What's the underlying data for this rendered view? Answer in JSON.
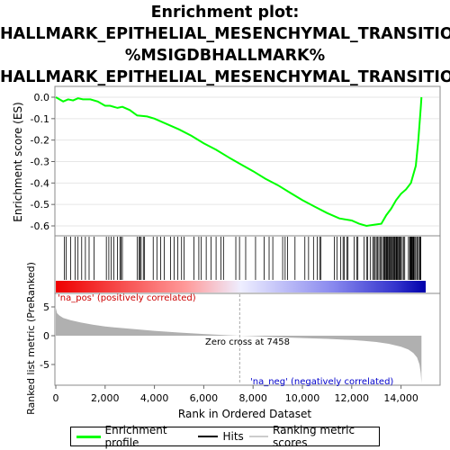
{
  "title": {
    "line1": "Enrichment plot:",
    "line2": "HALLMARK_EPITHELIAL_MESENCHYMAL_TRANSITION",
    "line3": "%MSIGDBHALLMARK%",
    "line4": "HALLMARK_EPITHELIAL_MESENCHYMAL_TRANSITION"
  },
  "colors": {
    "es_line": "#00ff00",
    "hits": "#000000",
    "metric_fill": "#b0b0b0",
    "pos_label": "#cc0000",
    "neg_label": "#0000cc",
    "zero_line": "#aaaaaa"
  },
  "chart_data": [
    {
      "type": "line",
      "name": "enrichment",
      "ylabel": "Enrichment score (ES)",
      "ylim": [
        -0.64,
        0.03
      ],
      "xlim": [
        0,
        15000
      ],
      "yticks": [
        "0.0",
        "-0.1",
        "-0.2",
        "-0.3",
        "-0.4",
        "-0.5",
        "-0.6"
      ],
      "series": [
        {
          "name": "Enrichment profile",
          "x": [
            0,
            300,
            500,
            700,
            900,
            1100,
            1400,
            1700,
            2000,
            2200,
            2500,
            2700,
            3000,
            3300,
            3700,
            4000,
            4500,
            5000,
            5500,
            6000,
            6500,
            7000,
            7458,
            8000,
            8500,
            9000,
            9500,
            10000,
            10500,
            11000,
            11500,
            12000,
            12300,
            12600,
            12900,
            13200,
            13400,
            13600,
            13800,
            14000,
            14200,
            14400,
            14600,
            14700,
            14800,
            14830
          ],
          "y": [
            0.0,
            -0.02,
            -0.01,
            -0.015,
            -0.005,
            -0.01,
            -0.01,
            -0.02,
            -0.04,
            -0.04,
            -0.05,
            -0.045,
            -0.06,
            -0.085,
            -0.09,
            -0.1,
            -0.125,
            -0.15,
            -0.18,
            -0.215,
            -0.245,
            -0.28,
            -0.31,
            -0.345,
            -0.38,
            -0.41,
            -0.445,
            -0.48,
            -0.51,
            -0.54,
            -0.565,
            -0.575,
            -0.59,
            -0.6,
            -0.595,
            -0.59,
            -0.55,
            -0.52,
            -0.48,
            -0.45,
            -0.43,
            -0.4,
            -0.32,
            -0.2,
            -0.05,
            0.0
          ]
        }
      ]
    },
    {
      "type": "heatmap",
      "name": "hits",
      "hit_positions": [
        350,
        420,
        600,
        780,
        900,
        1050,
        1200,
        1350,
        1550,
        2050,
        2150,
        2250,
        2350,
        2500,
        2600,
        2650,
        2700,
        3300,
        3380,
        3420,
        3460,
        3550,
        3600,
        3950,
        4100,
        4250,
        4400,
        4650,
        4800,
        4950,
        5100,
        5200,
        5600,
        5800,
        5900,
        6100,
        6300,
        6500,
        6700,
        6800,
        7300,
        7450,
        7700,
        8100,
        8450,
        8650,
        8800,
        9200,
        9300,
        9400,
        9700,
        10100,
        10250,
        10450,
        10600,
        10700,
        10750,
        11300,
        11400,
        11550,
        11650,
        11700,
        11800,
        11850,
        12100,
        12200,
        12250,
        12500,
        12600,
        12650,
        12750,
        12850,
        12900,
        12950,
        13000,
        13050,
        13100,
        13150,
        13200,
        13250,
        13300,
        13330,
        13360,
        13400,
        13430,
        13460,
        13500,
        13530,
        13560,
        13600,
        13630,
        13660,
        13700,
        13730,
        13760,
        13800,
        13830,
        13860,
        13900,
        13930,
        13960,
        14000,
        14050,
        14100,
        14150,
        14300,
        14350,
        14380,
        14400,
        14420,
        14450,
        14480,
        14500,
        14520,
        14560,
        14600,
        14650,
        14700,
        14750,
        14780,
        14800
      ]
    },
    {
      "type": "area",
      "name": "ranked-metric",
      "ylabel": "Ranked list metric (PreRanked)",
      "xlabel": "Rank in Ordered Dataset",
      "ylim": [
        -8.5,
        7.5
      ],
      "xlim": [
        0,
        15000
      ],
      "xticks": [
        0,
        2000,
        4000,
        6000,
        8000,
        10000,
        12000,
        14000
      ],
      "xtick_labels": [
        "0",
        "2,000",
        "4,000",
        "6,000",
        "8,000",
        "10,000",
        "12,000",
        "14,000"
      ],
      "yticks": [
        5,
        0,
        -5
      ],
      "x": [
        0,
        50,
        150,
        300,
        600,
        1000,
        1500,
        2000,
        3000,
        4000,
        5000,
        6000,
        7000,
        7458,
        8000,
        9000,
        10000,
        11000,
        12000,
        12500,
        13000,
        13500,
        14000,
        14300,
        14500,
        14650,
        14750,
        14800,
        14830
      ],
      "y": [
        4.8,
        3.9,
        3.5,
        3.1,
        2.7,
        2.3,
        1.9,
        1.6,
        1.2,
        0.85,
        0.55,
        0.3,
        0.08,
        0.0,
        -0.08,
        -0.25,
        -0.4,
        -0.55,
        -0.75,
        -0.9,
        -1.1,
        -1.4,
        -1.9,
        -2.4,
        -3.0,
        -3.8,
        -5.0,
        -6.5,
        -8.2
      ],
      "zero_cross": 7458
    }
  ],
  "annotations": {
    "pos_label": "'na_pos' (positively correlated)",
    "neg_label": "'na_neg' (negatively correlated)",
    "zero_cross": "Zero cross at 7458"
  },
  "legend": {
    "items": [
      {
        "label": "Enrichment profile",
        "color": "#00ff00"
      },
      {
        "label": "Hits",
        "color": "#000000"
      },
      {
        "label": "Ranking metric scores",
        "color": "#cccccc"
      }
    ]
  }
}
